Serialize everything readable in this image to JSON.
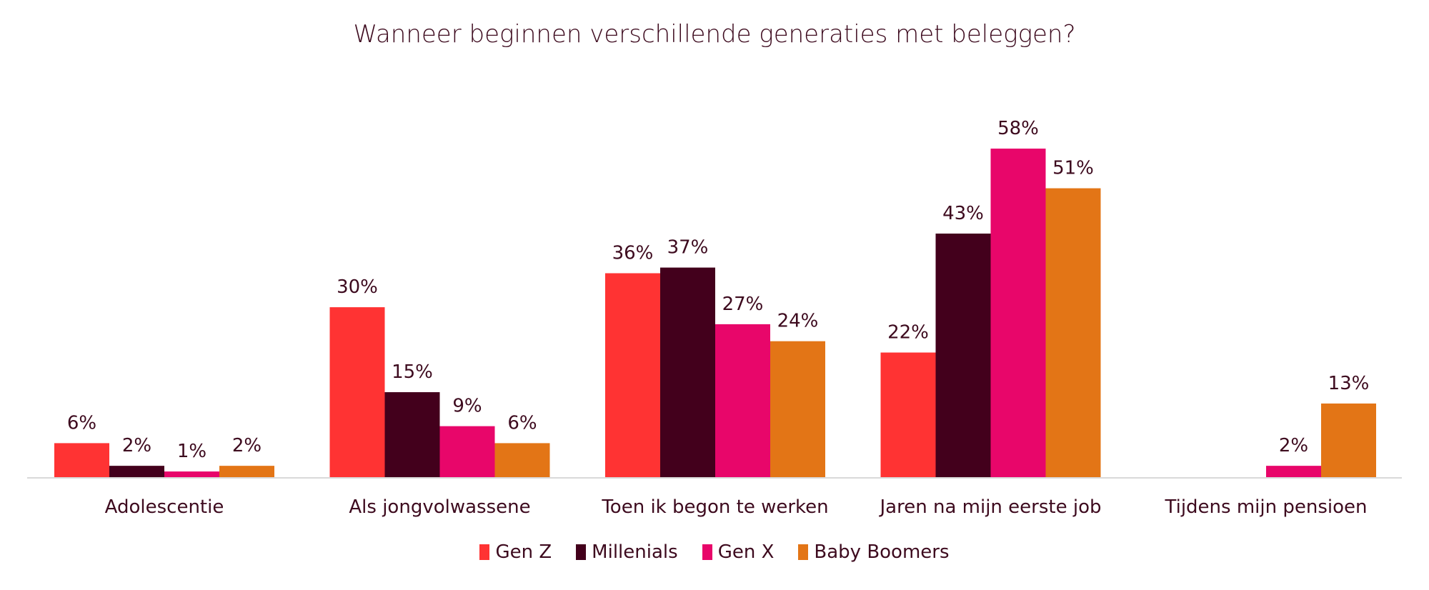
{
  "chart_data": {
    "type": "bar",
    "title": "Wanneer beginnen verschillende generaties met beleggen?",
    "categories": [
      "Adolescentie",
      "Als jongvolwassene",
      "Toen ik begon te werken",
      "Jaren na mijn eerste job",
      "Tijdens mijn pensioen"
    ],
    "series": [
      {
        "name": "Gen Z",
        "color": "#FF3333",
        "values": [
          6,
          30,
          36,
          22,
          0
        ],
        "labels": [
          "6%",
          "30%",
          "36%",
          "22%",
          ""
        ]
      },
      {
        "name": "Millenials",
        "color": "#43001C",
        "values": [
          2,
          15,
          37,
          43,
          0
        ],
        "labels": [
          "2%",
          "15%",
          "37%",
          "43%",
          ""
        ]
      },
      {
        "name": "Gen X",
        "color": "#E8066A",
        "values": [
          1,
          9,
          27,
          58,
          2
        ],
        "labels": [
          "1%",
          "9%",
          "27%",
          "58%",
          "2%"
        ]
      },
      {
        "name": "Baby Boomers",
        "color": "#E37516",
        "values": [
          2,
          6,
          24,
          51,
          13
        ],
        "labels": [
          "2%",
          "6%",
          "24%",
          "51%",
          "13%"
        ]
      }
    ],
    "ylim": [
      0,
      60
    ],
    "grid": false,
    "legend": "bottom"
  }
}
